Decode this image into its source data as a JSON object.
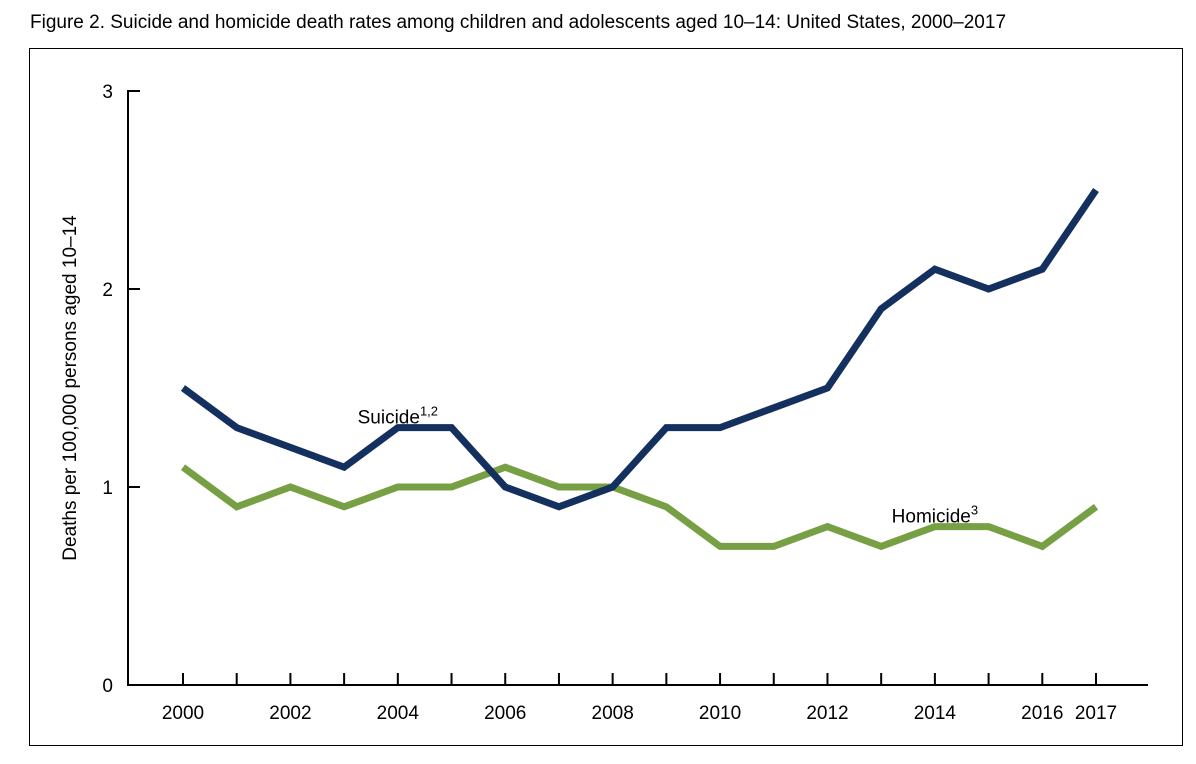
{
  "figure": {
    "title": "Figure 2. Suicide and homicide death rates among children and adolescents aged 10–14: United States, 2000–2017"
  },
  "chart_data": {
    "type": "line",
    "title": "Figure 2. Suicide and homicide death rates among children and adolescents aged 10–14: United States, 2000–2017",
    "xlabel": "",
    "ylabel": "Deaths per 100,000 persons aged 10–14",
    "x": [
      2000,
      2001,
      2002,
      2003,
      2004,
      2005,
      2006,
      2007,
      2008,
      2009,
      2010,
      2011,
      2012,
      2013,
      2014,
      2015,
      2016,
      2017
    ],
    "xticks": [
      "2000",
      "2002",
      "2004",
      "2006",
      "2008",
      "2010",
      "2012",
      "2014",
      "2016",
      "2017"
    ],
    "xtick_values": [
      2000,
      2002,
      2004,
      2006,
      2008,
      2010,
      2012,
      2014,
      2016,
      2017
    ],
    "ylim": [
      0,
      3
    ],
    "yticks": [
      "0",
      "1",
      "2",
      "3"
    ],
    "grid": false,
    "legend": "inline labels",
    "series": [
      {
        "name": "Suicide",
        "label": "Suicide",
        "footnote": "1,2",
        "color": "#14305e",
        "label_x": 2004,
        "label_y": 1.35,
        "values": [
          1.5,
          1.3,
          1.2,
          1.1,
          1.3,
          1.3,
          1.0,
          0.9,
          1.0,
          1.3,
          1.3,
          1.4,
          1.5,
          1.9,
          2.1,
          2.0,
          2.1,
          2.5
        ]
      },
      {
        "name": "Homicide",
        "label": "Homicide",
        "footnote": "3",
        "color": "#76a043",
        "label_x": 2014,
        "label_y": 0.85,
        "values": [
          1.1,
          0.9,
          1.0,
          0.9,
          1.0,
          1.0,
          1.1,
          1.0,
          1.0,
          0.9,
          0.7,
          0.7,
          0.8,
          0.7,
          0.8,
          0.8,
          0.7,
          0.9
        ]
      }
    ]
  }
}
